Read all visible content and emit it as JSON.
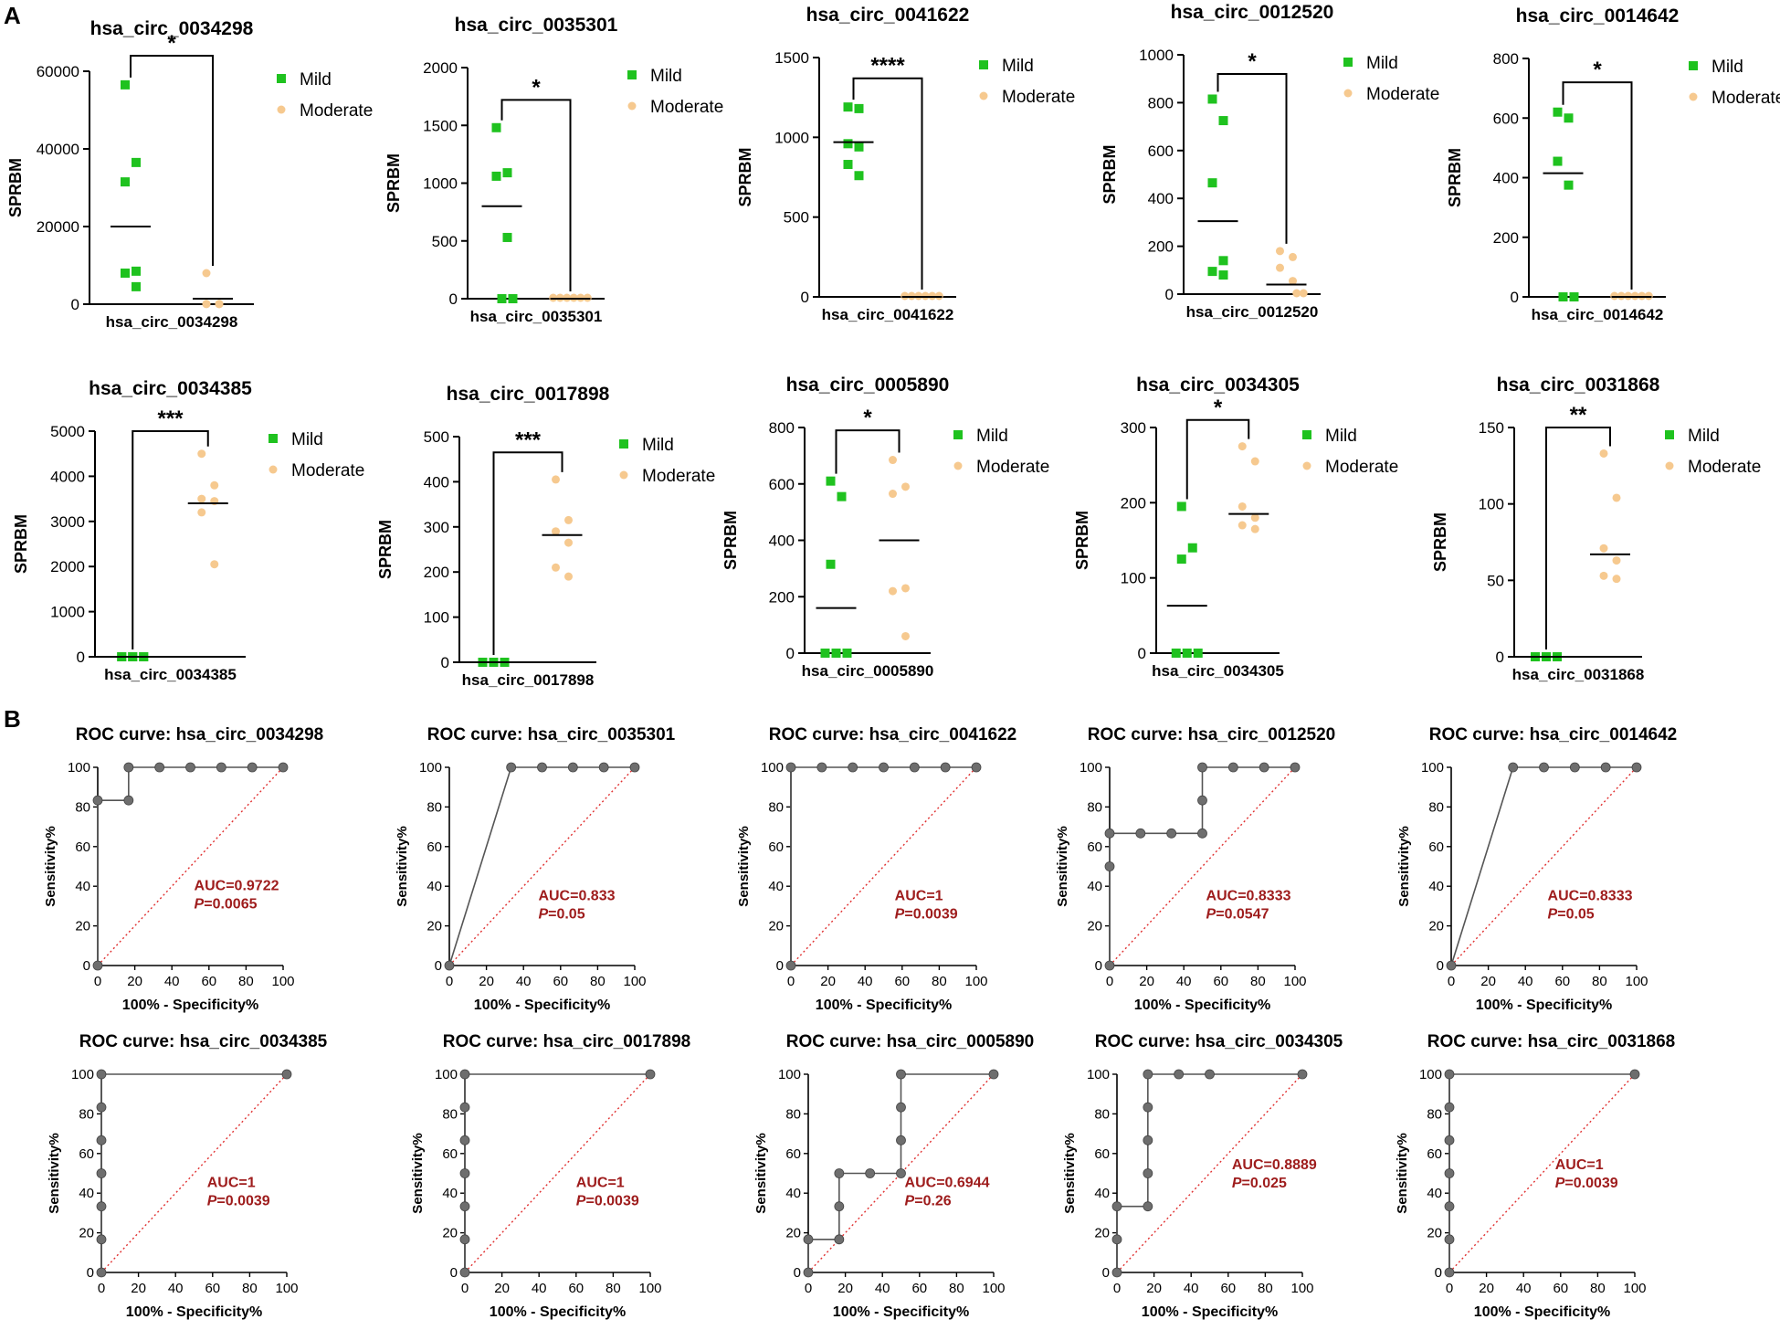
{
  "panel_labels": {
    "a": "A",
    "b": "B"
  },
  "colors": {
    "mild": "#1fc21f",
    "moderate": "#f6c98f",
    "axis": "#000000",
    "roc_line": "#555555",
    "roc_point": "#6e6e6e",
    "diagonal": "#e03030",
    "auc_text": "#9e1c1c"
  },
  "legend": {
    "mild": "Mild",
    "moderate": "Moderate"
  },
  "scatter_ylabel": "SPRBM",
  "roc_xlabel": "100% - Specificity%",
  "roc_ylabel": "Sensitivity%",
  "chart_data": {
    "scatter": [
      {
        "type": "scatter",
        "title": "hsa_circ_0034298",
        "xlabel": "hsa_circ_0034298",
        "ylabel": "SPRBM",
        "ylim": [
          0,
          60000
        ],
        "yticks": [
          0,
          20000,
          40000,
          60000
        ],
        "mild": [
          56500,
          36500,
          31500,
          8500,
          8000,
          4500
        ],
        "mild_mean": 20000,
        "moderate": [
          8000,
          50,
          50,
          50,
          50,
          50
        ],
        "moderate_mean": 1400,
        "significance": "*",
        "bracket_y": 64000
      },
      {
        "type": "scatter",
        "title": "hsa_circ_0035301",
        "xlabel": "hsa_circ_0035301",
        "ylabel": "SPRBM",
        "ylim": [
          0,
          2000
        ],
        "yticks": [
          0,
          500,
          1000,
          1500,
          2000
        ],
        "mild": [
          1480,
          1090,
          1060,
          530,
          0,
          0
        ],
        "mild_mean": 800,
        "moderate": [
          0,
          0,
          0,
          0,
          0,
          0
        ],
        "moderate_mean": 0,
        "significance": "*",
        "bracket_y": 1720
      },
      {
        "type": "scatter",
        "title": "hsa_circ_0041622",
        "xlabel": "hsa_circ_0041622",
        "ylabel": "SPRBM",
        "ylim": [
          0,
          1500
        ],
        "yticks": [
          0,
          500,
          1000,
          1500
        ],
        "mild": [
          1190,
          1180,
          960,
          940,
          830,
          760
        ],
        "mild_mean": 970,
        "moderate": [
          0,
          0,
          0,
          0,
          0,
          0
        ],
        "moderate_mean": 0,
        "significance": "****",
        "bracket_y": 1370
      },
      {
        "type": "scatter",
        "title": "hsa_circ_0012520",
        "xlabel": "hsa_circ_0012520",
        "ylabel": "SPRBM",
        "ylim": [
          0,
          1000
        ],
        "yticks": [
          0,
          200,
          400,
          600,
          800,
          1000
        ],
        "mild": [
          815,
          725,
          465,
          140,
          95,
          80
        ],
        "mild_mean": 305,
        "moderate": [
          180,
          155,
          110,
          55,
          0,
          0
        ],
        "moderate_mean": 40,
        "significance": "*",
        "bracket_y": 920
      },
      {
        "type": "scatter",
        "title": "hsa_circ_0014642",
        "xlabel": "hsa_circ_0014642",
        "ylabel": "SPRBM",
        "ylim": [
          0,
          800
        ],
        "yticks": [
          0,
          200,
          400,
          600,
          800
        ],
        "mild": [
          620,
          600,
          455,
          375,
          0,
          0
        ],
        "mild_mean": 415,
        "moderate": [
          0,
          0,
          0,
          0,
          0,
          0
        ],
        "moderate_mean": 0,
        "significance": "*",
        "bracket_y": 720
      },
      {
        "type": "scatter",
        "title": "hsa_circ_0034385",
        "xlabel": "hsa_circ_0034385",
        "ylabel": "SPRBM",
        "ylim": [
          0,
          5000
        ],
        "yticks": [
          0,
          1000,
          2000,
          3000,
          4000,
          5000
        ],
        "mild": [
          0,
          0,
          0,
          0,
          0,
          0
        ],
        "mild_mean": 0,
        "moderate": [
          4500,
          3800,
          3500,
          3450,
          3200,
          2050
        ],
        "moderate_mean": 3400,
        "significance": "***",
        "bracket_y": 5000
      },
      {
        "type": "scatter",
        "title": "hsa_circ_0017898",
        "xlabel": "hsa_circ_0017898",
        "ylabel": "SPRBM",
        "ylim": [
          0,
          500
        ],
        "yticks": [
          0,
          100,
          200,
          300,
          400,
          500
        ],
        "mild": [
          0,
          0,
          0,
          0,
          0,
          0
        ],
        "mild_mean": 0,
        "moderate": [
          405,
          315,
          290,
          265,
          210,
          190
        ],
        "moderate_mean": 282,
        "significance": "***",
        "bracket_y": 465
      },
      {
        "type": "scatter",
        "title": "hsa_circ_0005890",
        "xlabel": "hsa_circ_0005890",
        "ylabel": "SPRBM",
        "ylim": [
          0,
          800
        ],
        "yticks": [
          0,
          200,
          400,
          600,
          800
        ],
        "mild": [
          610,
          555,
          315,
          0,
          0,
          0
        ],
        "mild_mean": 160,
        "moderate": [
          685,
          590,
          565,
          230,
          220,
          60
        ],
        "moderate_mean": 400,
        "significance": "*",
        "bracket_y": 790
      },
      {
        "type": "scatter",
        "title": "hsa_circ_0034305",
        "xlabel": "hsa_circ_0034305",
        "ylabel": "SPRBM",
        "ylim": [
          0,
          300
        ],
        "yticks": [
          0,
          100,
          200,
          300
        ],
        "mild": [
          195,
          140,
          125,
          0,
          0,
          0
        ],
        "mild_mean": 63,
        "moderate": [
          275,
          255,
          195,
          180,
          170,
          165
        ],
        "moderate_mean": 185,
        "significance": "*",
        "bracket_y": 310
      },
      {
        "type": "scatter",
        "title": "hsa_circ_0031868",
        "xlabel": "hsa_circ_0031868",
        "ylabel": "SPRBM",
        "ylim": [
          0,
          150
        ],
        "yticks": [
          0,
          50,
          100,
          150
        ],
        "mild": [
          0,
          0,
          0,
          0,
          0,
          0
        ],
        "mild_mean": 0,
        "moderate": [
          133,
          104,
          71,
          63,
          53,
          51
        ],
        "moderate_mean": 67,
        "significance": "**",
        "bracket_y": 150
      }
    ],
    "roc": [
      {
        "type": "line",
        "title": "ROC curve: hsa_circ_0034298",
        "xlabel": "100% - Specificity%",
        "ylabel": "Sensitivity%",
        "xlim": [
          0,
          100
        ],
        "ylim": [
          0,
          100
        ],
        "xticks": [
          0,
          20,
          40,
          60,
          80,
          100
        ],
        "yticks": [
          0,
          20,
          40,
          60,
          80,
          100
        ],
        "x": [
          0,
          0,
          16.67,
          16.67,
          33.33,
          50,
          66.67,
          83.33,
          100
        ],
        "y": [
          0,
          83.33,
          83.33,
          100,
          100,
          100,
          100,
          100,
          100
        ],
        "auc": "AUC=0.9722",
        "p_label": "P",
        "p_value": "=0.0065"
      },
      {
        "type": "line",
        "title": "ROC curve: hsa_circ_0035301",
        "xlabel": "100% - Specificity%",
        "ylabel": "Sensitivity%",
        "xlim": [
          0,
          100
        ],
        "ylim": [
          0,
          100
        ],
        "xticks": [
          0,
          20,
          40,
          60,
          80,
          100
        ],
        "yticks": [
          0,
          20,
          40,
          60,
          80,
          100
        ],
        "x": [
          0,
          33.33,
          50,
          66.67,
          83.33,
          100
        ],
        "y": [
          0,
          100,
          100,
          100,
          100,
          100
        ],
        "auc": "AUC=0.833",
        "p_label": "P",
        "p_value": "=0.05"
      },
      {
        "type": "line",
        "title": "ROC curve: hsa_circ_0041622",
        "xlabel": "100% - Specificity%",
        "ylabel": "Sensitivity%",
        "xlim": [
          0,
          100
        ],
        "ylim": [
          0,
          100
        ],
        "xticks": [
          0,
          20,
          40,
          60,
          80,
          100
        ],
        "yticks": [
          0,
          20,
          40,
          60,
          80,
          100
        ],
        "x": [
          0,
          0,
          16.67,
          33.33,
          50,
          66.67,
          83.33,
          100
        ],
        "y": [
          0,
          100,
          100,
          100,
          100,
          100,
          100,
          100
        ],
        "auc": "AUC=1",
        "p_label": "P",
        "p_value": "=0.0039"
      },
      {
        "type": "line",
        "title": "ROC curve: hsa_circ_0012520",
        "xlabel": "100% - Specificity%",
        "ylabel": "Sensitivity%",
        "xlim": [
          0,
          100
        ],
        "ylim": [
          0,
          100
        ],
        "xticks": [
          0,
          20,
          40,
          60,
          80,
          100
        ],
        "yticks": [
          0,
          20,
          40,
          60,
          80,
          100
        ],
        "x": [
          0,
          0,
          0,
          16.67,
          33.33,
          50,
          50,
          50,
          66.67,
          83.33,
          100
        ],
        "y": [
          0,
          50,
          66.67,
          66.67,
          66.67,
          66.67,
          83.33,
          100,
          100,
          100,
          100
        ],
        "auc": "AUC=0.8333",
        "p_label": "P",
        "p_value": "=0.0547"
      },
      {
        "type": "line",
        "title": "ROC curve: hsa_circ_0014642",
        "xlabel": "100% - Specificity%",
        "ylabel": "Sensitivity%",
        "xlim": [
          0,
          100
        ],
        "ylim": [
          0,
          100
        ],
        "xticks": [
          0,
          20,
          40,
          60,
          80,
          100
        ],
        "yticks": [
          0,
          20,
          40,
          60,
          80,
          100
        ],
        "x": [
          0,
          33.33,
          50,
          66.67,
          83.33,
          100
        ],
        "y": [
          0,
          100,
          100,
          100,
          100,
          100
        ],
        "auc": "AUC=0.8333",
        "p_label": "P",
        "p_value": "=0.05"
      },
      {
        "type": "line",
        "title": "ROC curve: hsa_circ_0034385",
        "xlabel": "100% - Specificity%",
        "ylabel": "Sensitivity%",
        "xlim": [
          0,
          100
        ],
        "ylim": [
          0,
          100
        ],
        "xticks": [
          0,
          20,
          40,
          60,
          80,
          100
        ],
        "yticks": [
          0,
          20,
          40,
          60,
          80,
          100
        ],
        "x": [
          0,
          0,
          0,
          0,
          0,
          0,
          0,
          100
        ],
        "y": [
          0,
          16.67,
          33.33,
          50,
          66.67,
          83.33,
          100,
          100
        ],
        "auc": "AUC=1",
        "p_label": "P",
        "p_value": "=0.0039"
      },
      {
        "type": "line",
        "title": "ROC curve: hsa_circ_0017898",
        "xlabel": "100% - Specificity%",
        "ylabel": "Sensitivity%",
        "xlim": [
          0,
          100
        ],
        "ylim": [
          0,
          100
        ],
        "xticks": [
          0,
          20,
          40,
          60,
          80,
          100
        ],
        "yticks": [
          0,
          20,
          40,
          60,
          80,
          100
        ],
        "x": [
          0,
          0,
          0,
          0,
          0,
          0,
          0,
          100
        ],
        "y": [
          0,
          16.67,
          33.33,
          50,
          66.67,
          83.33,
          100,
          100
        ],
        "auc": "AUC=1",
        "p_label": "P",
        "p_value": "=0.0039"
      },
      {
        "type": "line",
        "title": "ROC curve: hsa_circ_0005890",
        "xlabel": "100% - Specificity%",
        "ylabel": "Sensitivity%",
        "xlim": [
          0,
          100
        ],
        "ylim": [
          0,
          100
        ],
        "xticks": [
          0,
          20,
          40,
          60,
          80,
          100
        ],
        "yticks": [
          0,
          20,
          40,
          60,
          80,
          100
        ],
        "x": [
          0,
          0,
          16.67,
          16.67,
          16.67,
          33.33,
          50,
          50,
          50,
          50,
          100
        ],
        "y": [
          0,
          16.67,
          16.67,
          33.33,
          50,
          50,
          50,
          66.67,
          83.33,
          100,
          100
        ],
        "auc": "AUC=0.6944",
        "p_label": "P",
        "p_value": "=0.26"
      },
      {
        "type": "line",
        "title": "ROC curve: hsa_circ_0034305",
        "xlabel": "100% - Specificity%",
        "ylabel": "Sensitivity%",
        "xlim": [
          0,
          100
        ],
        "ylim": [
          0,
          100
        ],
        "xticks": [
          0,
          20,
          40,
          60,
          80,
          100
        ],
        "yticks": [
          0,
          20,
          40,
          60,
          80,
          100
        ],
        "x": [
          0,
          0,
          0,
          16.67,
          16.67,
          16.67,
          16.67,
          16.67,
          33.33,
          50,
          100
        ],
        "y": [
          0,
          16.67,
          33.33,
          33.33,
          50,
          66.67,
          83.33,
          100,
          100,
          100,
          100
        ],
        "auc": "AUC=0.8889",
        "p_label": "P",
        "p_value": "=0.025"
      },
      {
        "type": "line",
        "title": "ROC curve: hsa_circ_0031868",
        "xlabel": "100% - Specificity%",
        "ylabel": "Sensitivity%",
        "xlim": [
          0,
          100
        ],
        "ylim": [
          0,
          100
        ],
        "xticks": [
          0,
          20,
          40,
          60,
          80,
          100
        ],
        "yticks": [
          0,
          20,
          40,
          60,
          80,
          100
        ],
        "x": [
          0,
          0,
          0,
          0,
          0,
          0,
          0,
          100
        ],
        "y": [
          0,
          16.67,
          33.33,
          50,
          66.67,
          83.33,
          100,
          100
        ],
        "auc": "AUC=1",
        "p_label": "P",
        "p_value": "=0.0039"
      }
    ]
  }
}
